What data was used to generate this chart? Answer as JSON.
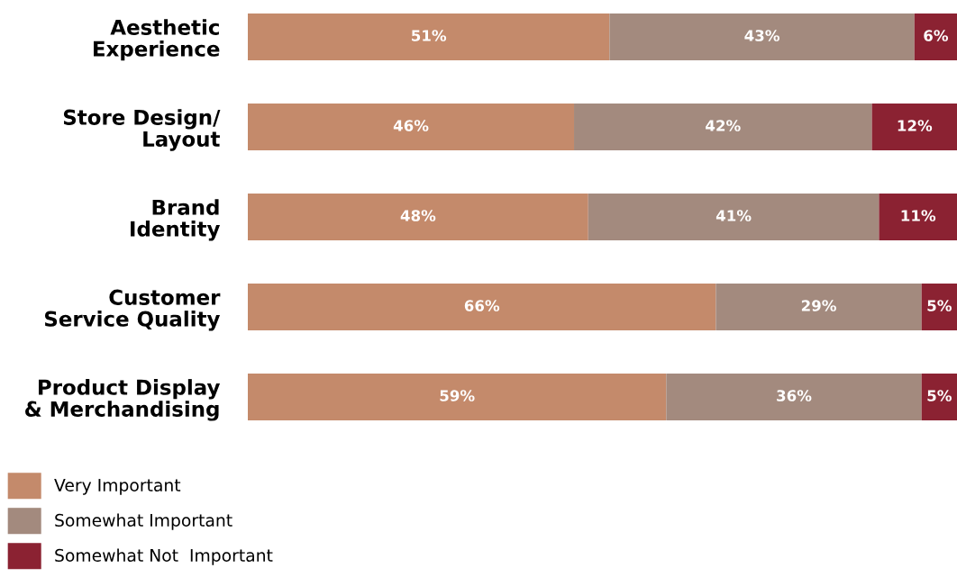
{
  "chart_data": {
    "type": "bar",
    "orientation": "horizontal",
    "stacked": true,
    "categories": [
      "Aesthetic\nExperience",
      "Store Design/\nLayout",
      "Brand\nIdentity",
      "Customer\nService Quality",
      "Product Display\n& Merchandising"
    ],
    "series": [
      {
        "name": "Very Important",
        "color": "#c48a6b",
        "values": [
          51,
          46,
          48,
          66,
          59
        ],
        "value_labels": [
          "51%",
          "46%",
          "48%",
          "66%",
          "59%"
        ]
      },
      {
        "name": "Somewhat Important",
        "color": "#a38a7e",
        "values": [
          43,
          42,
          41,
          29,
          36
        ],
        "value_labels": [
          "43%",
          "42%",
          "41%",
          "29%",
          "36%"
        ]
      },
      {
        "name": "Somewhat Not  Important",
        "color": "#8b2232",
        "values": [
          6,
          12,
          11,
          5,
          5
        ],
        "value_labels": [
          "6%",
          "12%",
          "11%",
          "5%",
          "5%"
        ]
      }
    ],
    "tick_labels": "y",
    "legend": "bottom left",
    "grid": false
  }
}
